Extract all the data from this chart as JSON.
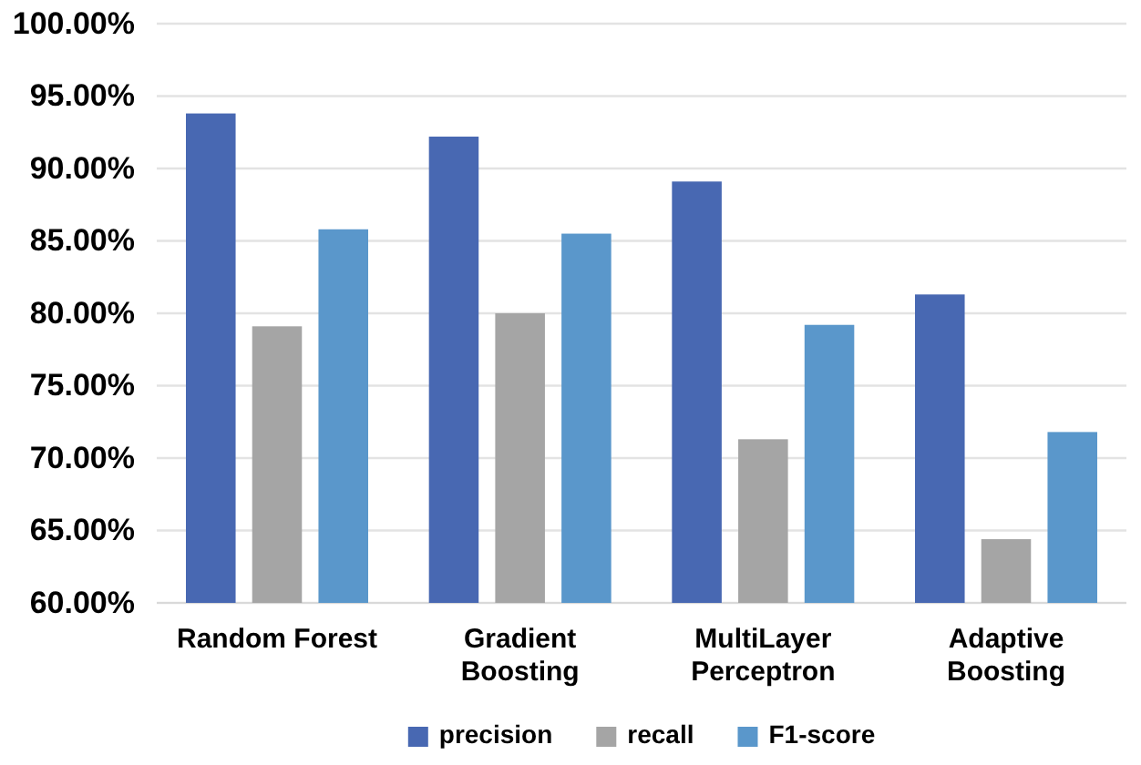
{
  "chart_data": {
    "type": "bar",
    "categories": [
      "Random Forest",
      "Gradient Boosting",
      "MultiLayer Perceptron",
      "Adaptive Boosting"
    ],
    "series": [
      {
        "name": "precision",
        "color": "#4868b2",
        "values": [
          93.8,
          92.2,
          89.1,
          81.3
        ]
      },
      {
        "name": "recall",
        "color": "#a5a5a5",
        "values": [
          79.1,
          80.0,
          71.3,
          64.4
        ]
      },
      {
        "name": "F1-score",
        "color": "#5a97cb",
        "values": [
          85.8,
          85.5,
          79.2,
          71.8
        ]
      }
    ],
    "ylim": [
      60,
      100
    ],
    "yticks": [
      {
        "value": 60,
        "label": "60.00%"
      },
      {
        "value": 65,
        "label": "65.00%"
      },
      {
        "value": 70,
        "label": "70.00%"
      },
      {
        "value": 75,
        "label": "75.00%"
      },
      {
        "value": 80,
        "label": "80.00%"
      },
      {
        "value": 85,
        "label": "85.00%"
      },
      {
        "value": 90,
        "label": "90.00%"
      },
      {
        "value": 95,
        "label": "95.00%"
      },
      {
        "value": 100,
        "label": "100.00%"
      }
    ],
    "grid": "y",
    "legend": "bottom"
  }
}
